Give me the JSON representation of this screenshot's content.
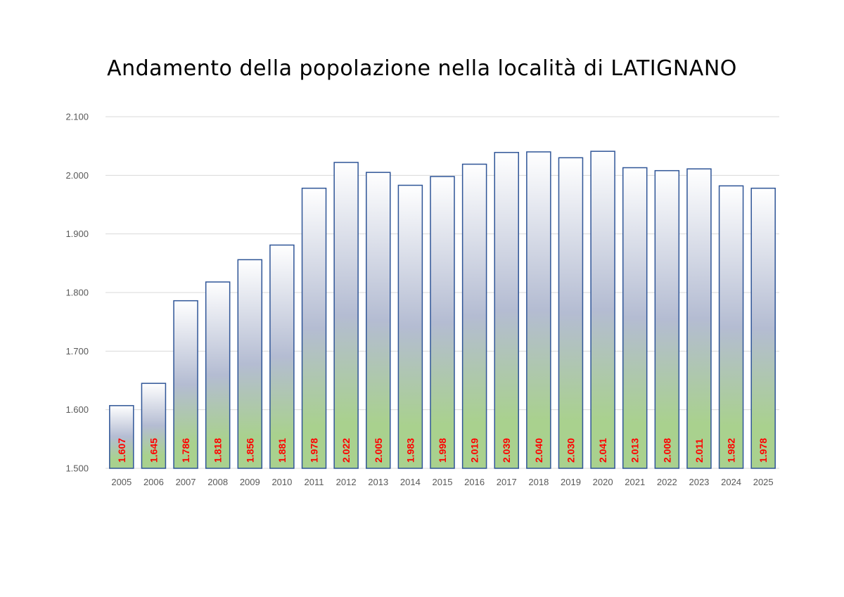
{
  "chart_data": {
    "type": "bar",
    "title": "Andamento della popolazione nella località di LATIGNANO",
    "xlabel": "",
    "ylabel": "",
    "categories": [
      "2005",
      "2006",
      "2007",
      "2008",
      "2009",
      "2010",
      "2011",
      "2012",
      "2013",
      "2014",
      "2015",
      "2016",
      "2017",
      "2018",
      "2019",
      "2020",
      "2021",
      "2022",
      "2023",
      "2024",
      "2025"
    ],
    "values": [
      1607,
      1645,
      1786,
      1818,
      1856,
      1881,
      1978,
      2022,
      2005,
      1983,
      1998,
      2019,
      2039,
      2040,
      2030,
      2041,
      2013,
      2008,
      2011,
      1982,
      1978
    ],
    "value_labels": [
      "1.607",
      "1.645",
      "1.786",
      "1.818",
      "1.856",
      "1.881",
      "1.978",
      "2.022",
      "2.005",
      "1.983",
      "1.998",
      "2.019",
      "2.039",
      "2.040",
      "2.030",
      "2.041",
      "2.013",
      "2.008",
      "2.011",
      "1.982",
      "1.978"
    ],
    "ylim": [
      1500,
      2100
    ],
    "yticks": [
      1500,
      1600,
      1700,
      1800,
      1900,
      2000,
      2100
    ],
    "ytick_labels": [
      "1.500",
      "1.600",
      "1.700",
      "1.800",
      "1.900",
      "2.000",
      "2.100"
    ],
    "grid": true,
    "legend": "none",
    "colors": {
      "bar_border": "#2f5597",
      "bar_gradient_top": "#ffffff",
      "bar_gradient_middle": "#b4bcd2",
      "bar_gradient_bottom": "#a9d18e",
      "data_label": "#ff0000",
      "grid": "#d9d9d9",
      "axis_text": "#595959"
    }
  }
}
